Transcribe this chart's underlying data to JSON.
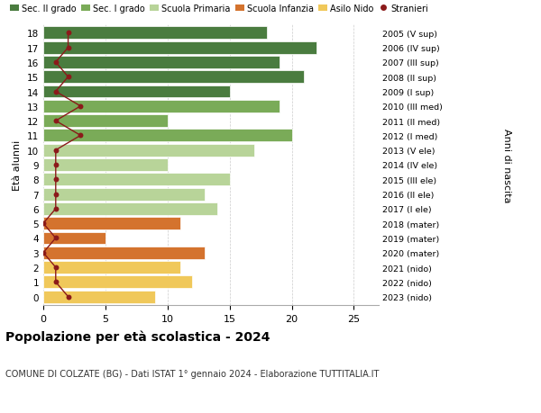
{
  "ages": [
    18,
    17,
    16,
    15,
    14,
    13,
    12,
    11,
    10,
    9,
    8,
    7,
    6,
    5,
    4,
    3,
    2,
    1,
    0
  ],
  "bar_values": [
    18,
    22,
    19,
    21,
    15,
    19,
    10,
    20,
    17,
    10,
    15,
    13,
    14,
    11,
    5,
    13,
    11,
    12,
    9
  ],
  "stranieri": [
    2,
    2,
    1,
    2,
    1,
    3,
    1,
    3,
    1,
    1,
    1,
    1,
    1,
    0,
    1,
    0,
    1,
    1,
    2
  ],
  "right_labels": [
    "2005 (V sup)",
    "2006 (IV sup)",
    "2007 (III sup)",
    "2008 (II sup)",
    "2009 (I sup)",
    "2010 (III med)",
    "2011 (II med)",
    "2012 (I med)",
    "2013 (V ele)",
    "2014 (IV ele)",
    "2015 (III ele)",
    "2016 (II ele)",
    "2017 (I ele)",
    "2018 (mater)",
    "2019 (mater)",
    "2020 (mater)",
    "2021 (nido)",
    "2022 (nido)",
    "2023 (nido)"
  ],
  "bar_colors": [
    "#4a7c3f",
    "#4a7c3f",
    "#4a7c3f",
    "#4a7c3f",
    "#4a7c3f",
    "#7aab58",
    "#7aab58",
    "#7aab58",
    "#b8d499",
    "#b8d499",
    "#b8d499",
    "#b8d499",
    "#b8d499",
    "#d4732e",
    "#d4732e",
    "#d4732e",
    "#f0c85a",
    "#f0c85a",
    "#f0c85a"
  ],
  "stranieri_color": "#8b1a1a",
  "title": "Popolazione per età scolastica - 2024",
  "subtitle": "COMUNE DI COLZATE (BG) - Dati ISTAT 1° gennaio 2024 - Elaborazione TUTTITALIA.IT",
  "ylabel": "Età alunni",
  "right_ylabel": "Anni di nascita",
  "xlim": [
    0,
    27
  ],
  "legend_labels": [
    "Sec. II grado",
    "Sec. I grado",
    "Scuola Primaria",
    "Scuola Infanzia",
    "Asilo Nido",
    "Stranieri"
  ],
  "legend_colors": [
    "#4a7c3f",
    "#7aab58",
    "#b8d499",
    "#d4732e",
    "#f0c85a",
    "#8b1a1a"
  ]
}
